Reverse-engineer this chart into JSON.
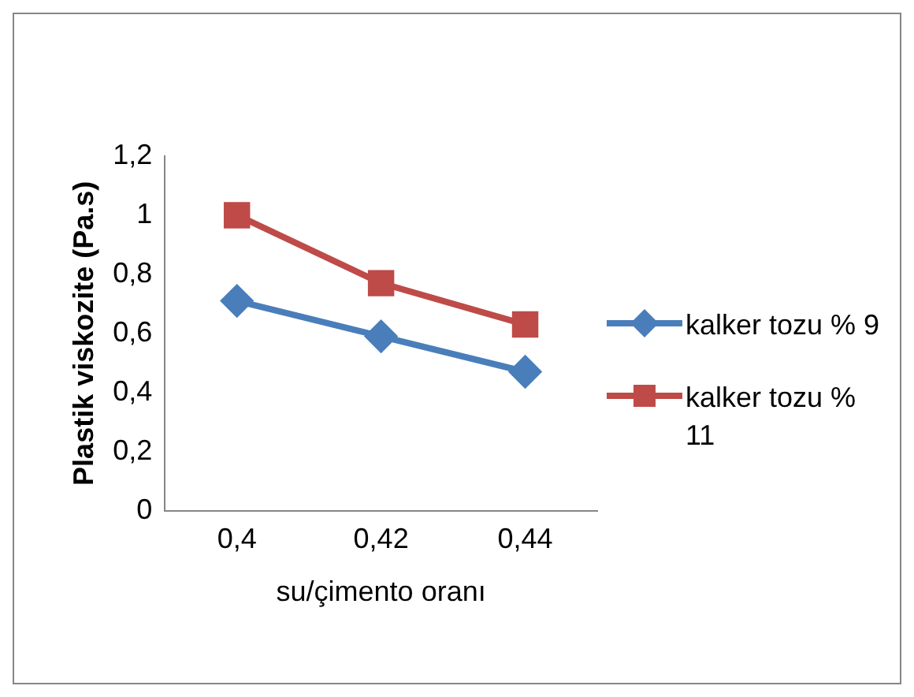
{
  "chart_data": {
    "type": "line",
    "xlabel": "su/çimento oranı",
    "ylabel": "Plastik viskozite (Pa.s)",
    "categories": [
      "0,4",
      "0,42",
      "0,44"
    ],
    "series": [
      {
        "name": "kalker tozu % 9",
        "color": "#4a7ebb",
        "values": [
          0.71,
          0.59,
          0.47
        ],
        "marker": "diamond"
      },
      {
        "name": "kalker tozu % 11",
        "color": "#be4b48",
        "values": [
          1.0,
          0.77,
          0.63
        ],
        "marker": "square"
      }
    ],
    "ylim": [
      0,
      1.2
    ],
    "yticks": [
      0,
      {
        "value": 0.2,
        "label": "0,2"
      },
      {
        "value": 0.4,
        "label": "0,4"
      },
      {
        "value": 0.6,
        "label": "0,6"
      },
      {
        "value": 0.8,
        "label": "0,8"
      },
      1,
      {
        "value": 1.2,
        "label": "1,2"
      }
    ],
    "grid": false,
    "legend": "right"
  }
}
